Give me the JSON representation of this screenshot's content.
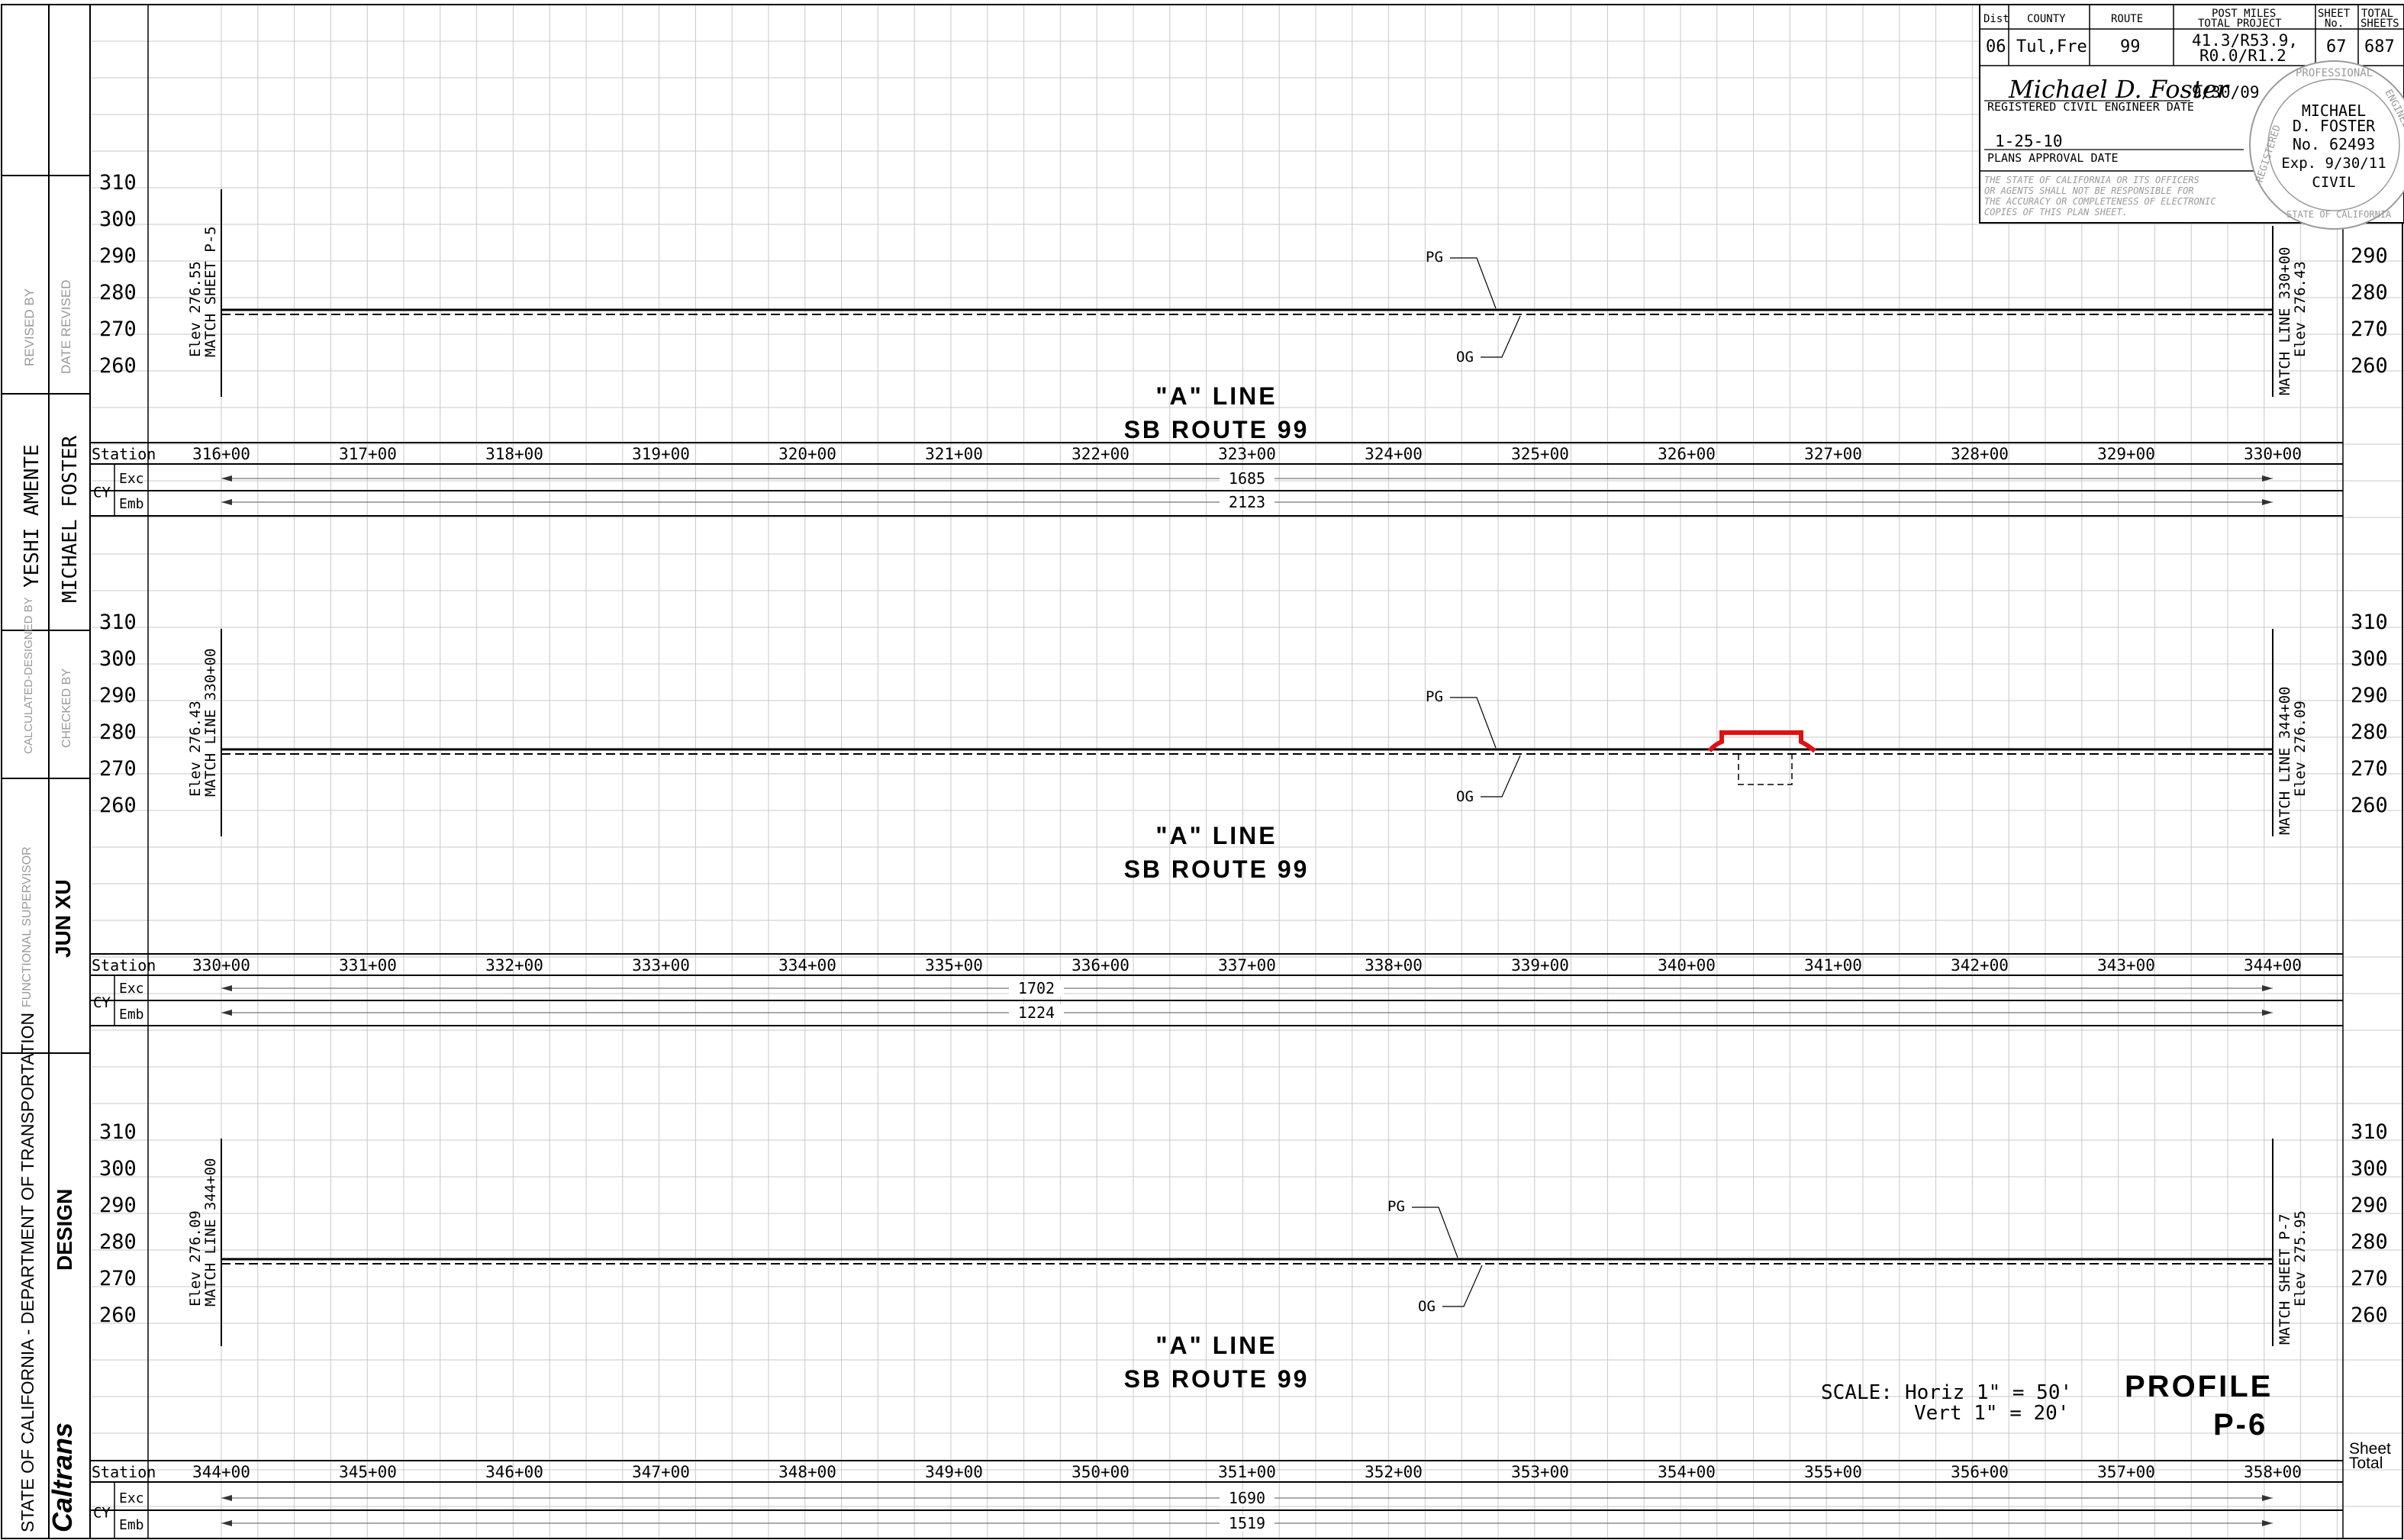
{
  "title_block": {
    "headers": [
      "Dist",
      "COUNTY",
      "ROUTE",
      "POST MILES",
      "TOTAL PROJECT",
      "SHEET",
      "No.",
      "TOTAL",
      "SHEETS"
    ],
    "dist": "06",
    "county": "Tul,Fre",
    "route": "99",
    "post_miles_1": "41.3/R53.9,",
    "post_miles_2": "R0.0/R1.2",
    "sheet_no": "67",
    "total_sheets": "687",
    "signature": "Michael D. Foster",
    "sign_date": "9/30/09",
    "engineer_label": "REGISTERED CIVIL ENGINEER DATE",
    "approval_date": "1-25-10",
    "approval_label": "PLANS APPROVAL DATE",
    "disclaimer": [
      "THE STATE OF CALIFORNIA OR ITS OFFICERS",
      "OR AGENTS SHALL NOT BE RESPONSIBLE FOR",
      "THE ACCURACY OR COMPLETENESS OF ELECTRONIC",
      "COPIES OF THIS PLAN SHEET."
    ]
  },
  "seal": {
    "ring_top": "PROFESSIONAL",
    "ring_left": "REGISTERED",
    "ring_right": "ENGINEER",
    "ring_bottom": "STATE OF CALIFORNIA",
    "name_1": "MICHAEL",
    "name_2": "D. FOSTER",
    "number": "No. 62493",
    "expires": "Exp. 9/30/11",
    "discipline": "CIVIL"
  },
  "left_border": {
    "revised_by": "REVISED BY",
    "date_revised": "DATE REVISED",
    "designer": "YESHI AMENTE",
    "checker": "MICHAEL FOSTER",
    "calculated_by": "CALCULATED-DESIGNED BY",
    "checked_by": "CHECKED BY",
    "functional_supervisor_label": "FUNCTIONAL SUPERVISOR",
    "supervisor": "JUN XU",
    "agency": "STATE OF CALIFORNIA  -  DEPARTMENT OF TRANSPORTATION",
    "division": "DESIGN",
    "logo": "Caltrans"
  },
  "panels": [
    {
      "elevations": [
        "310",
        "300",
        "290",
        "280",
        "270",
        "260"
      ],
      "right_elevations": [
        "290",
        "280",
        "270",
        "260"
      ],
      "stations": [
        "316+00",
        "317+00",
        "318+00",
        "319+00",
        "320+00",
        "321+00",
        "322+00",
        "323+00",
        "324+00",
        "325+00",
        "326+00",
        "327+00",
        "328+00",
        "329+00",
        "330+00"
      ],
      "station_label": "Station",
      "cy_label": "CY",
      "exc_label": "Exc",
      "emb_label": "Emb",
      "exc_value": "1685",
      "emb_value": "2123",
      "match_left": [
        "Elev 276.55",
        "MATCH SHEET P-5"
      ],
      "match_right": [
        "MATCH LINE 330+00",
        "Elev 276.43"
      ],
      "line_name": "\"A\" LINE",
      "route_name": "SB ROUTE 99",
      "pg_label": "PG",
      "og_label": "OG"
    },
    {
      "elevations": [
        "310",
        "300",
        "290",
        "280",
        "270",
        "260"
      ],
      "right_elevations": [
        "310",
        "300",
        "290",
        "280",
        "270",
        "260"
      ],
      "stations": [
        "330+00",
        "331+00",
        "332+00",
        "333+00",
        "334+00",
        "335+00",
        "336+00",
        "337+00",
        "338+00",
        "339+00",
        "340+00",
        "341+00",
        "342+00",
        "343+00",
        "344+00"
      ],
      "station_label": "Station",
      "cy_label": "CY",
      "exc_label": "Exc",
      "emb_label": "Emb",
      "exc_value": "1702",
      "emb_value": "1224",
      "match_left": [
        "Elev 276.43",
        "MATCH LINE 330+00"
      ],
      "match_right": [
        "MATCH LINE 344+00",
        "Elev 276.09"
      ],
      "line_name": "\"A\" LINE",
      "route_name": "SB ROUTE 99",
      "pg_label": "PG",
      "og_label": "OG"
    },
    {
      "elevations": [
        "310",
        "300",
        "290",
        "280",
        "270",
        "260"
      ],
      "right_elevations": [
        "310",
        "300",
        "290",
        "280",
        "270",
        "260"
      ],
      "stations": [
        "344+00",
        "345+00",
        "346+00",
        "347+00",
        "348+00",
        "349+00",
        "350+00",
        "351+00",
        "352+00",
        "353+00",
        "354+00",
        "355+00",
        "356+00",
        "357+00",
        "358+00"
      ],
      "station_label": "Station",
      "cy_label": "CY",
      "exc_label": "Exc",
      "emb_label": "Emb",
      "exc_value": "1690",
      "emb_value": "1519",
      "match_left": [
        "Elev 276.09",
        "MATCH LINE 344+00"
      ],
      "match_right": [
        "MATCH SHEET P-7",
        "Elev 275.95"
      ],
      "line_name": "\"A\" LINE",
      "route_name": "SB ROUTE 99",
      "pg_label": "PG",
      "og_label": "OG"
    }
  ],
  "scale": {
    "label": "SCALE:",
    "horiz": "Horiz 1\" = 50'",
    "vert": "Vert 1\" = 20'"
  },
  "sheet_title": "PROFILE",
  "sheet_code": "P-6",
  "sheet_total_1": "Sheet",
  "sheet_total_2": "Total",
  "colors": {
    "ink": "#000000",
    "grid": "#c8c8c8",
    "highlight": "#e01010",
    "faint": "#9a9a9a"
  }
}
